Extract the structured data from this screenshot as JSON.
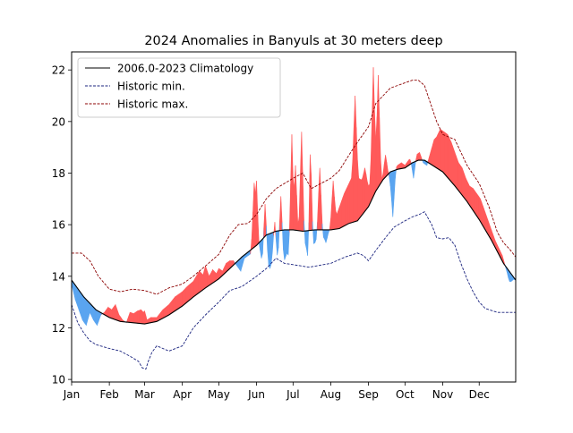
{
  "chart_data": {
    "type": "area",
    "title": "2024 Anomalies in Banyuls at 30 meters deep",
    "xlabel": "",
    "ylabel": "",
    "ylim": [
      9.9,
      22.7
    ],
    "xlim": [
      0,
      365
    ],
    "grid": false,
    "legend_position": "top-left",
    "x_ticks": [
      {
        "label": "Jan",
        "day": 0
      },
      {
        "label": "Feb",
        "day": 31
      },
      {
        "label": "Mar",
        "day": 60
      },
      {
        "label": "Apr",
        "day": 91
      },
      {
        "label": "May",
        "day": 121
      },
      {
        "label": "Jun",
        "day": 152
      },
      {
        "label": "Jul",
        "day": 182
      },
      {
        "label": "Aug",
        "day": 213
      },
      {
        "label": "Sep",
        "day": 244
      },
      {
        "label": "Oct",
        "day": 274
      },
      {
        "label": "Nov",
        "day": 305
      },
      {
        "label": "Dec",
        "day": 335
      }
    ],
    "y_ticks": [
      10,
      12,
      14,
      16,
      18,
      20,
      22
    ],
    "colors": {
      "warm_anomaly": "#ff5a5a",
      "cold_anomaly": "#5aa5f0",
      "climatology": "#000000",
      "historic_min": "#1a237e",
      "historic_max": "#8b0000"
    },
    "series": [
      {
        "name": "2006.0-2023 Climatology",
        "style": "solid",
        "points": [
          [
            0,
            13.85
          ],
          [
            10,
            13.2
          ],
          [
            20,
            12.7
          ],
          [
            31,
            12.4
          ],
          [
            40,
            12.25
          ],
          [
            50,
            12.2
          ],
          [
            60,
            12.15
          ],
          [
            70,
            12.25
          ],
          [
            80,
            12.5
          ],
          [
            91,
            12.85
          ],
          [
            100,
            13.2
          ],
          [
            110,
            13.55
          ],
          [
            121,
            13.9
          ],
          [
            130,
            14.3
          ],
          [
            140,
            14.75
          ],
          [
            152,
            15.2
          ],
          [
            160,
            15.6
          ],
          [
            168,
            15.75
          ],
          [
            175,
            15.8
          ],
          [
            182,
            15.8
          ],
          [
            190,
            15.75
          ],
          [
            200,
            15.8
          ],
          [
            213,
            15.8
          ],
          [
            220,
            15.85
          ],
          [
            228,
            16.05
          ],
          [
            235,
            16.15
          ],
          [
            244,
            16.7
          ],
          [
            250,
            17.3
          ],
          [
            256,
            17.75
          ],
          [
            262,
            18.05
          ],
          [
            268,
            18.15
          ],
          [
            274,
            18.2
          ],
          [
            280,
            18.4
          ],
          [
            285,
            18.5
          ],
          [
            290,
            18.5
          ],
          [
            295,
            18.35
          ],
          [
            305,
            18.05
          ],
          [
            315,
            17.5
          ],
          [
            325,
            16.9
          ],
          [
            335,
            16.2
          ],
          [
            345,
            15.4
          ],
          [
            355,
            14.5
          ],
          [
            365,
            13.85
          ]
        ]
      },
      {
        "name": "Historic min.",
        "style": "dashed",
        "points": [
          [
            0,
            12.9
          ],
          [
            5,
            12.2
          ],
          [
            10,
            11.8
          ],
          [
            15,
            11.5
          ],
          [
            20,
            11.35
          ],
          [
            31,
            11.2
          ],
          [
            40,
            11.1
          ],
          [
            48,
            10.9
          ],
          [
            55,
            10.7
          ],
          [
            58,
            10.45
          ],
          [
            61,
            10.4
          ],
          [
            63,
            10.7
          ],
          [
            66,
            11.05
          ],
          [
            70,
            11.3
          ],
          [
            80,
            11.1
          ],
          [
            91,
            11.3
          ],
          [
            100,
            12.0
          ],
          [
            110,
            12.5
          ],
          [
            121,
            13.0
          ],
          [
            130,
            13.45
          ],
          [
            140,
            13.6
          ],
          [
            152,
            14.0
          ],
          [
            160,
            14.3
          ],
          [
            168,
            14.7
          ],
          [
            175,
            14.5
          ],
          [
            182,
            14.45
          ],
          [
            195,
            14.35
          ],
          [
            213,
            14.5
          ],
          [
            225,
            14.75
          ],
          [
            235,
            14.9
          ],
          [
            240,
            14.8
          ],
          [
            244,
            14.6
          ],
          [
            250,
            15.0
          ],
          [
            258,
            15.5
          ],
          [
            265,
            15.9
          ],
          [
            272,
            16.1
          ],
          [
            280,
            16.3
          ],
          [
            286,
            16.4
          ],
          [
            290,
            16.5
          ],
          [
            296,
            16.0
          ],
          [
            300,
            15.5
          ],
          [
            305,
            15.45
          ],
          [
            310,
            15.5
          ],
          [
            315,
            15.2
          ],
          [
            320,
            14.5
          ],
          [
            325,
            13.9
          ],
          [
            330,
            13.4
          ],
          [
            335,
            13.0
          ],
          [
            340,
            12.75
          ],
          [
            350,
            12.6
          ],
          [
            365,
            12.6
          ]
        ]
      },
      {
        "name": "Historic max.",
        "style": "dashed",
        "points": [
          [
            0,
            14.9
          ],
          [
            8,
            14.9
          ],
          [
            15,
            14.6
          ],
          [
            22,
            14.0
          ],
          [
            31,
            13.5
          ],
          [
            40,
            13.4
          ],
          [
            50,
            13.5
          ],
          [
            60,
            13.45
          ],
          [
            70,
            13.3
          ],
          [
            80,
            13.55
          ],
          [
            91,
            13.7
          ],
          [
            100,
            14.0
          ],
          [
            110,
            14.4
          ],
          [
            121,
            14.85
          ],
          [
            130,
            15.6
          ],
          [
            137,
            16.0
          ],
          [
            145,
            16.05
          ],
          [
            152,
            16.4
          ],
          [
            160,
            17.0
          ],
          [
            168,
            17.4
          ],
          [
            175,
            17.6
          ],
          [
            182,
            17.8
          ],
          [
            190,
            18.0
          ],
          [
            197,
            17.4
          ],
          [
            205,
            17.6
          ],
          [
            213,
            17.8
          ],
          [
            220,
            18.1
          ],
          [
            228,
            18.7
          ],
          [
            235,
            19.2
          ],
          [
            244,
            19.8
          ],
          [
            250,
            20.7
          ],
          [
            256,
            21.0
          ],
          [
            262,
            21.3
          ],
          [
            268,
            21.4
          ],
          [
            274,
            21.5
          ],
          [
            280,
            21.6
          ],
          [
            285,
            21.6
          ],
          [
            290,
            21.4
          ],
          [
            295,
            20.7
          ],
          [
            300,
            20.0
          ],
          [
            305,
            19.5
          ],
          [
            315,
            19.3
          ],
          [
            325,
            18.3
          ],
          [
            335,
            17.6
          ],
          [
            343,
            16.7
          ],
          [
            350,
            15.7
          ],
          [
            355,
            15.3
          ],
          [
            360,
            15.05
          ],
          [
            365,
            14.75
          ]
        ]
      },
      {
        "name": "2024",
        "style": "fill",
        "points": [
          [
            0,
            13.7
          ],
          [
            3,
            13.1
          ],
          [
            6,
            12.7
          ],
          [
            9,
            12.3
          ],
          [
            12,
            12.1
          ],
          [
            15,
            12.6
          ],
          [
            18,
            12.3
          ],
          [
            21,
            12.1
          ],
          [
            24,
            12.5
          ],
          [
            27,
            12.6
          ],
          [
            30,
            12.8
          ],
          [
            33,
            12.7
          ],
          [
            36,
            12.9
          ],
          [
            39,
            12.5
          ],
          [
            42,
            12.3
          ],
          [
            45,
            12.2
          ],
          [
            48,
            12.6
          ],
          [
            51,
            12.55
          ],
          [
            54,
            12.65
          ],
          [
            57,
            12.7
          ],
          [
            59,
            12.6
          ],
          [
            60,
            12.65
          ],
          [
            62,
            12.3
          ],
          [
            65,
            12.4
          ],
          [
            70,
            12.4
          ],
          [
            75,
            12.7
          ],
          [
            80,
            12.9
          ],
          [
            85,
            13.2
          ],
          [
            91,
            13.4
          ],
          [
            95,
            13.6
          ],
          [
            100,
            13.8
          ],
          [
            105,
            14.2
          ],
          [
            108,
            14.05
          ],
          [
            110,
            14.4
          ],
          [
            113,
            14.0
          ],
          [
            116,
            14.25
          ],
          [
            119,
            14.1
          ],
          [
            121,
            14.3
          ],
          [
            124,
            14.2
          ],
          [
            127,
            14.5
          ],
          [
            130,
            14.6
          ],
          [
            133,
            14.6
          ],
          [
            136,
            14.4
          ],
          [
            139,
            14.2
          ],
          [
            142,
            14.7
          ],
          [
            145,
            14.8
          ],
          [
            148,
            14.9
          ],
          [
            151,
            14.7
          ],
          [
            153,
            14.4
          ],
          [
            155,
            15.0
          ],
          [
            157,
            14.4
          ],
          [
            160,
            14.7
          ],
          [
            163,
            14.3
          ],
          [
            166,
            14.8
          ],
          [
            168,
            14.4
          ],
          [
            171,
            14.7
          ],
          [
            174,
            14.5
          ],
          [
            177,
            14.9
          ],
          [
            180,
            14.7
          ],
          [
            182,
            15.0
          ],
          [
            185,
            15.4
          ],
          [
            188,
            15.5
          ],
          [
            191,
            15.3
          ],
          [
            194,
            15.6
          ],
          [
            197,
            15.2
          ],
          [
            200,
            15.3
          ],
          [
            203,
            15.7
          ],
          [
            206,
            15.5
          ],
          [
            209,
            15.7
          ],
          [
            212,
            15.8
          ],
          [
            215,
            16.0
          ],
          [
            218,
            16.4
          ],
          [
            221,
            16.8
          ],
          [
            224,
            17.2
          ],
          [
            227,
            17.5
          ],
          [
            230,
            17.8
          ],
          [
            233,
            18.0
          ],
          [
            236,
            17.8
          ],
          [
            239,
            17.7
          ],
          [
            242,
            17.6
          ],
          [
            244,
            17.5
          ],
          [
            247,
            17.7
          ],
          [
            250,
            17.8
          ],
          [
            253,
            17.7
          ],
          [
            256,
            17.8
          ],
          [
            259,
            18.0
          ],
          [
            262,
            17.8
          ],
          [
            265,
            18.1
          ],
          [
            268,
            18.3
          ],
          [
            271,
            18.4
          ],
          [
            274,
            18.3
          ],
          [
            277,
            18.5
          ],
          [
            280,
            18.6
          ],
          [
            283,
            18.7
          ],
          [
            286,
            18.8
          ],
          [
            289,
            18.4
          ],
          [
            292,
            18.3
          ],
          [
            295,
            18.8
          ],
          [
            298,
            19.3
          ],
          [
            300,
            19.4
          ],
          [
            303,
            19.7
          ],
          [
            306,
            19.6
          ],
          [
            309,
            19.5
          ],
          [
            312,
            19.2
          ],
          [
            315,
            18.8
          ],
          [
            318,
            18.4
          ],
          [
            321,
            18.2
          ],
          [
            324,
            17.8
          ],
          [
            327,
            17.5
          ],
          [
            330,
            17.4
          ],
          [
            333,
            17.2
          ],
          [
            336,
            17.0
          ],
          [
            339,
            16.6
          ],
          [
            342,
            16.2
          ],
          [
            345,
            15.8
          ],
          [
            348,
            15.4
          ],
          [
            351,
            15.1
          ],
          [
            354,
            14.8
          ],
          [
            357,
            14.3
          ],
          [
            360,
            13.8
          ],
          [
            363,
            13.9
          ],
          [
            365,
            13.85
          ]
        ],
        "spikes": [
          [
            150,
            17.6
          ],
          [
            152,
            17.7
          ],
          [
            159,
            16.8
          ],
          [
            167,
            16.1
          ],
          [
            172,
            17.1
          ],
          [
            181,
            19.5
          ],
          [
            184,
            18.3
          ],
          [
            189,
            19.6
          ],
          [
            196,
            19.7
          ],
          [
            204,
            18.2
          ],
          [
            215,
            17.7
          ],
          [
            233,
            21.0
          ],
          [
            241,
            18.2
          ],
          [
            248,
            22.1
          ],
          [
            252,
            21.8
          ],
          [
            258,
            18.7
          ]
        ],
        "dips": [
          [
            194,
            14.8
          ],
          [
            209,
            15.3
          ],
          [
            264,
            16.3
          ],
          [
            281,
            17.8
          ],
          [
            361,
            13.8
          ]
        ]
      }
    ]
  }
}
